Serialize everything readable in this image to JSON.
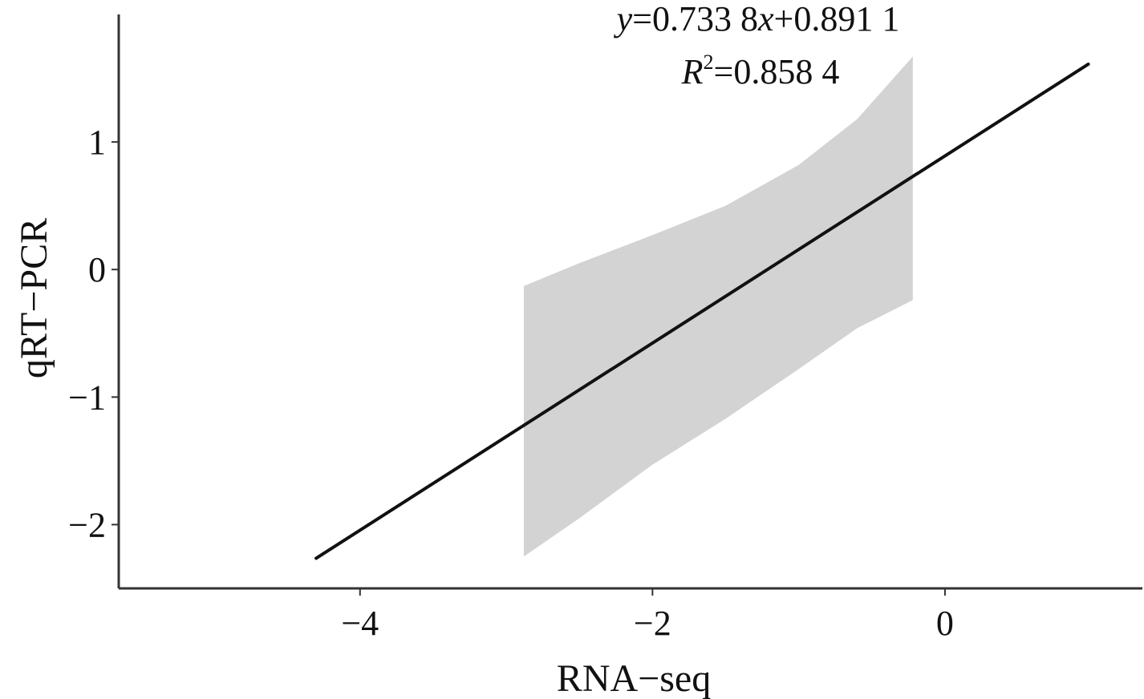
{
  "chart_data": {
    "type": "line",
    "xlabel": "RNA−seq",
    "ylabel": "qRT−PCR",
    "xlim": [
      -5.65,
      1.35
    ],
    "ylim": [
      -2.5,
      2.0
    ],
    "x_ticks": [
      -4,
      -2,
      0
    ],
    "x_tick_labels": [
      "−4",
      "−2",
      "0"
    ],
    "y_ticks": [
      -2,
      -1,
      0,
      1
    ],
    "y_tick_labels": [
      "−2",
      "−1",
      "0",
      "1"
    ],
    "grid": false,
    "series": [
      {
        "kind": "fit-line",
        "x": [
          -4.3,
          0.98
        ],
        "y": [
          -2.264,
          1.61
        ]
      },
      {
        "kind": "confidence-band",
        "x": [
          -2.88,
          -2.5,
          -2.0,
          -1.5,
          -1.0,
          -0.6,
          -0.22
        ],
        "lower": [
          -2.25,
          -1.95,
          -1.53,
          -1.17,
          -0.78,
          -0.46,
          -0.24
        ],
        "upper": [
          -0.13,
          0.05,
          0.27,
          0.5,
          0.82,
          1.18,
          1.67
        ]
      }
    ],
    "annotations": {
      "equation": {
        "y_var": "y",
        "eq1": "=0.733 8",
        "x_var": "x",
        "eq2": "+0.891 1"
      },
      "r2": {
        "var": "R",
        "sup": "2",
        "value": "=0.858 4"
      }
    },
    "colors": {
      "line": "#111111",
      "band": "#d3d3d3",
      "axis": "#333333"
    }
  }
}
